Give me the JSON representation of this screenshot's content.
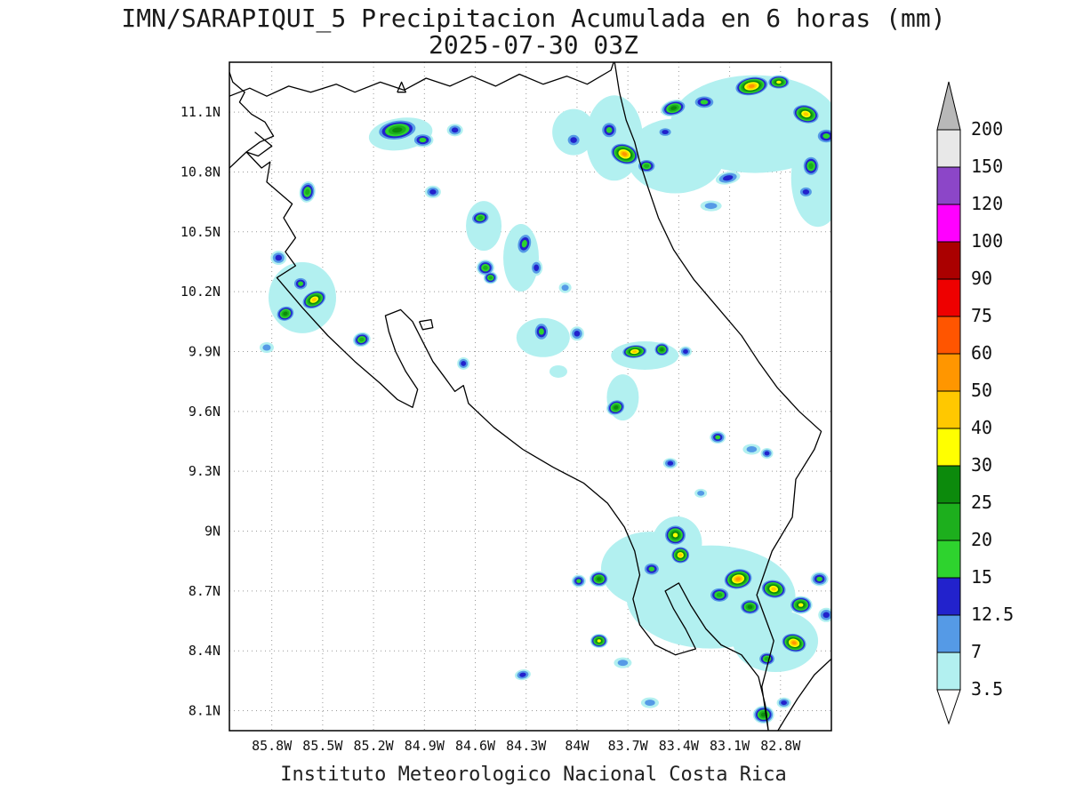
{
  "header": {
    "title_line1": "IMN/SARAPIQUI_5 Precipitacion Acumulada en 6 horas (mm)",
    "title_line2": "2025-07-30 03Z"
  },
  "footer": {
    "credit": "Instituto Meteorologico Nacional Costa Rica"
  },
  "chart_data": {
    "type": "heatmap",
    "title": "IMN/SARAPIQUI_5 Precipitacion Acumulada en 6 horas (mm)",
    "valid_time": "2025-07-30 03Z",
    "units": "mm",
    "region": "Costa Rica",
    "bounds": {
      "lon_min": -86.05,
      "lon_max": -82.5,
      "lat_min": 8.0,
      "lat_max": 11.35
    },
    "grid": true,
    "lat_ticks": [
      {
        "value": 11.1,
        "label": "11.1N"
      },
      {
        "value": 10.8,
        "label": "10.8N"
      },
      {
        "value": 10.5,
        "label": "10.5N"
      },
      {
        "value": 10.2,
        "label": "10.2N"
      },
      {
        "value": 9.9,
        "label": "9.9N"
      },
      {
        "value": 9.6,
        "label": "9.6N"
      },
      {
        "value": 9.3,
        "label": "9.3N"
      },
      {
        "value": 9.0,
        "label": "9N"
      },
      {
        "value": 8.7,
        "label": "8.7N"
      },
      {
        "value": 8.4,
        "label": "8.4N"
      },
      {
        "value": 8.1,
        "label": "8.1N"
      }
    ],
    "lon_ticks": [
      {
        "value": -85.8,
        "label": "85.8W"
      },
      {
        "value": -85.5,
        "label": "85.5W"
      },
      {
        "value": -85.2,
        "label": "85.2W"
      },
      {
        "value": -84.9,
        "label": "84.9W"
      },
      {
        "value": -84.6,
        "label": "84.6W"
      },
      {
        "value": -84.3,
        "label": "84.3W"
      },
      {
        "value": -84.0,
        "label": "84W"
      },
      {
        "value": -83.7,
        "label": "83.7W"
      },
      {
        "value": -83.4,
        "label": "83.4W"
      },
      {
        "value": -83.1,
        "label": "83.1W"
      },
      {
        "value": -82.8,
        "label": "82.8W"
      }
    ],
    "colorbar": {
      "boundary_values": [
        3.5,
        7,
        12.5,
        15,
        20,
        25,
        30,
        40,
        50,
        60,
        75,
        90,
        100,
        120,
        150,
        200
      ],
      "boundary_labels": [
        "3.5",
        "7",
        "12.5",
        "15",
        "20",
        "25",
        "30",
        "40",
        "50",
        "60",
        "75",
        "90",
        "100",
        "120",
        "150",
        "200"
      ],
      "segment_colors": [
        "#b2f0f0",
        "#559ae6",
        "#2222cc",
        "#2ed32e",
        "#1daf1d",
        "#0c8a0c",
        "#ffff00",
        "#ffc800",
        "#ff9600",
        "#ff5500",
        "#ee0000",
        "#aa0000",
        "#ff00ff",
        "#8c46c8",
        "#e8e8e8"
      ],
      "above_color": "#b8b8b8",
      "below_color": "#ffffff"
    },
    "cell_levels": [
      3.5,
      7,
      12.5,
      15,
      20,
      25,
      30,
      40,
      50
    ],
    "cell_format": [
      "lon",
      "lat",
      "peak_mm",
      "rx_px",
      "ry_px",
      "rot_deg"
    ],
    "cells": [
      [
        -82.95,
        11.04,
        3.5,
        95,
        55,
        0
      ],
      [
        -83.42,
        10.88,
        3.5,
        55,
        42,
        0
      ],
      [
        -83.78,
        10.97,
        3.5,
        32,
        48,
        0
      ],
      [
        -82.58,
        10.77,
        3.5,
        30,
        55,
        0
      ],
      [
        -84.02,
        11.0,
        3.5,
        24,
        26,
        0
      ],
      [
        -84.33,
        10.37,
        3.5,
        20,
        38,
        0
      ],
      [
        -83.21,
        8.67,
        3.5,
        95,
        58,
        0
      ],
      [
        -83.57,
        8.81,
        3.5,
        55,
        42,
        0
      ],
      [
        -83.41,
        8.94,
        3.5,
        28,
        30,
        0
      ],
      [
        -83.6,
        9.88,
        3.5,
        38,
        16,
        0
      ],
      [
        -83.73,
        9.67,
        3.5,
        18,
        26,
        0
      ],
      [
        -85.62,
        10.17,
        3.5,
        38,
        40,
        0
      ],
      [
        -85.04,
        10.99,
        3.5,
        36,
        18,
        -8
      ],
      [
        -82.83,
        8.45,
        3.5,
        48,
        35,
        0
      ],
      [
        -84.55,
        10.53,
        3.5,
        20,
        28,
        0
      ],
      [
        -84.2,
        9.97,
        3.5,
        30,
        22,
        0
      ],
      [
        -84.11,
        9.8,
        3.5,
        10,
        7,
        0
      ],
      [
        -85.06,
        11.01,
        25,
        24,
        12,
        -8
      ],
      [
        -84.91,
        10.96,
        15,
        12,
        8,
        0
      ],
      [
        -84.72,
        11.01,
        12.5,
        9,
        7,
        0
      ],
      [
        -84.02,
        10.96,
        12.5,
        9,
        8,
        0
      ],
      [
        -83.72,
        10.89,
        50,
        17,
        12,
        20
      ],
      [
        -83.81,
        11.01,
        15,
        10,
        10,
        0
      ],
      [
        -83.59,
        10.83,
        20,
        11,
        8,
        0
      ],
      [
        -83.43,
        11.12,
        25,
        15,
        9,
        -15
      ],
      [
        -83.25,
        11.15,
        15,
        13,
        8,
        0
      ],
      [
        -82.97,
        11.23,
        50,
        20,
        11,
        -10
      ],
      [
        -82.81,
        11.25,
        30,
        13,
        8,
        0
      ],
      [
        -82.65,
        11.09,
        40,
        16,
        11,
        15
      ],
      [
        -82.53,
        10.98,
        15,
        12,
        9,
        0
      ],
      [
        -82.62,
        10.83,
        20,
        10,
        12,
        0
      ],
      [
        -82.65,
        10.7,
        12.5,
        9,
        7,
        0
      ],
      [
        -83.11,
        10.77,
        12.5,
        14,
        7,
        -12
      ],
      [
        -83.21,
        10.63,
        7,
        12,
        6,
        0
      ],
      [
        -83.48,
        11.0,
        12.5,
        9,
        6,
        0
      ],
      [
        -85.59,
        10.7,
        20,
        9,
        12,
        10
      ],
      [
        -84.85,
        10.7,
        12.5,
        9,
        7,
        0
      ],
      [
        -84.57,
        10.57,
        20,
        11,
        8,
        -10
      ],
      [
        -84.31,
        10.44,
        15,
        9,
        13,
        15
      ],
      [
        -84.54,
        10.32,
        20,
        10,
        9,
        0
      ],
      [
        -84.51,
        10.27,
        20,
        8,
        7,
        0
      ],
      [
        -84.24,
        10.32,
        12.5,
        7,
        9,
        0
      ],
      [
        -84.07,
        10.22,
        7,
        7,
        6,
        0
      ],
      [
        -85.76,
        10.37,
        12.5,
        9,
        8,
        0
      ],
      [
        -85.72,
        10.09,
        25,
        11,
        9,
        -20
      ],
      [
        -85.55,
        10.16,
        40,
        15,
        10,
        -25
      ],
      [
        -85.63,
        10.24,
        15,
        9,
        8,
        0
      ],
      [
        -85.27,
        9.96,
        20,
        10,
        8,
        -15
      ],
      [
        -85.83,
        9.92,
        7,
        8,
        6,
        0
      ],
      [
        -84.67,
        9.84,
        12.5,
        7,
        7,
        0
      ],
      [
        -84.21,
        10.0,
        15,
        9,
        11,
        0
      ],
      [
        -84.0,
        9.99,
        12.5,
        8,
        8,
        0
      ],
      [
        -83.66,
        9.9,
        40,
        15,
        8,
        -5
      ],
      [
        -83.5,
        9.91,
        25,
        9,
        8,
        0
      ],
      [
        -83.36,
        9.9,
        12.5,
        7,
        6,
        0
      ],
      [
        -83.77,
        9.62,
        25,
        11,
        9,
        -20
      ],
      [
        -83.17,
        9.47,
        15,
        9,
        7,
        0
      ],
      [
        -82.97,
        9.41,
        7,
        10,
        6,
        0
      ],
      [
        -82.88,
        9.39,
        12.5,
        7,
        6,
        0
      ],
      [
        -83.45,
        9.34,
        12.5,
        8,
        6,
        0
      ],
      [
        -83.27,
        9.19,
        7,
        7,
        5,
        0
      ],
      [
        -83.42,
        8.98,
        30,
        13,
        12,
        0
      ],
      [
        -83.39,
        8.88,
        40,
        11,
        10,
        0
      ],
      [
        -83.56,
        8.81,
        15,
        10,
        8,
        0
      ],
      [
        -83.87,
        8.76,
        25,
        11,
        9,
        0
      ],
      [
        -83.99,
        8.75,
        15,
        8,
        7,
        0
      ],
      [
        -83.05,
        8.76,
        50,
        17,
        12,
        -10
      ],
      [
        -82.84,
        8.71,
        40,
        15,
        11,
        10
      ],
      [
        -82.68,
        8.63,
        30,
        13,
        10,
        0
      ],
      [
        -82.98,
        8.62,
        25,
        12,
        9,
        0
      ],
      [
        -83.16,
        8.68,
        20,
        12,
        9,
        0
      ],
      [
        -82.57,
        8.76,
        15,
        10,
        8,
        0
      ],
      [
        -82.53,
        8.58,
        12.5,
        9,
        8,
        0
      ],
      [
        -82.72,
        8.44,
        50,
        15,
        11,
        15
      ],
      [
        -82.88,
        8.36,
        20,
        10,
        8,
        0
      ],
      [
        -83.87,
        8.45,
        30,
        10,
        8,
        0
      ],
      [
        -83.73,
        8.34,
        7,
        10,
        6,
        0
      ],
      [
        -84.32,
        8.28,
        12.5,
        9,
        6,
        -10
      ],
      [
        -83.57,
        8.14,
        7,
        10,
        6,
        0
      ],
      [
        -82.9,
        8.08,
        25,
        12,
        10,
        0
      ],
      [
        -82.78,
        8.14,
        12.5,
        8,
        6,
        0
      ]
    ],
    "coastlines": [
      {
        "name": "costa-rica-outline",
        "points": [
          [
            -85.9,
            11.0
          ],
          [
            -85.8,
            10.93
          ],
          [
            -85.88,
            10.88
          ],
          [
            -85.95,
            10.9
          ],
          [
            -85.86,
            10.82
          ],
          [
            -85.81,
            10.85
          ],
          [
            -85.83,
            10.75
          ],
          [
            -85.68,
            10.64
          ],
          [
            -85.73,
            10.57
          ],
          [
            -85.66,
            10.47
          ],
          [
            -85.72,
            10.4
          ],
          [
            -85.66,
            10.33
          ],
          [
            -85.77,
            10.27
          ],
          [
            -85.62,
            10.12
          ],
          [
            -85.47,
            9.98
          ],
          [
            -85.31,
            9.85
          ],
          [
            -85.16,
            9.74
          ],
          [
            -85.06,
            9.66
          ],
          [
            -84.97,
            9.62
          ],
          [
            -84.94,
            9.71
          ],
          [
            -85.01,
            9.8
          ],
          [
            -85.07,
            9.9
          ],
          [
            -85.11,
            10.0
          ],
          [
            -85.13,
            10.08
          ],
          [
            -85.04,
            10.11
          ],
          [
            -84.97,
            10.05
          ],
          [
            -84.91,
            9.95
          ],
          [
            -84.85,
            9.85
          ],
          [
            -84.78,
            9.77
          ],
          [
            -84.72,
            9.7
          ],
          [
            -84.67,
            9.73
          ],
          [
            -84.64,
            9.64
          ],
          [
            -84.49,
            9.52
          ],
          [
            -84.32,
            9.41
          ],
          [
            -84.14,
            9.32
          ],
          [
            -83.96,
            9.24
          ],
          [
            -83.82,
            9.14
          ],
          [
            -83.72,
            9.02
          ],
          [
            -83.66,
            8.9
          ],
          [
            -83.63,
            8.78
          ],
          [
            -83.67,
            8.66
          ],
          [
            -83.63,
            8.53
          ],
          [
            -83.54,
            8.43
          ],
          [
            -83.42,
            8.38
          ],
          [
            -83.3,
            8.41
          ],
          [
            -83.36,
            8.51
          ],
          [
            -83.43,
            8.61
          ],
          [
            -83.48,
            8.7
          ],
          [
            -83.4,
            8.74
          ],
          [
            -83.33,
            8.63
          ],
          [
            -83.24,
            8.51
          ],
          [
            -83.15,
            8.43
          ],
          [
            -83.03,
            8.38
          ],
          [
            -82.93,
            8.27
          ],
          [
            -82.89,
            8.13
          ],
          [
            -82.87,
            7.99
          ],
          [
            -82.91,
            8.22
          ],
          [
            -82.84,
            8.45
          ],
          [
            -82.94,
            8.68
          ],
          [
            -82.85,
            8.9
          ],
          [
            -82.73,
            9.07
          ],
          [
            -82.71,
            9.26
          ],
          [
            -82.6,
            9.41
          ],
          [
            -82.56,
            9.5
          ],
          [
            -82.69,
            9.6
          ],
          [
            -82.82,
            9.72
          ],
          [
            -82.93,
            9.85
          ],
          [
            -83.03,
            9.98
          ],
          [
            -83.17,
            10.12
          ],
          [
            -83.31,
            10.26
          ],
          [
            -83.43,
            10.41
          ],
          [
            -83.52,
            10.57
          ],
          [
            -83.58,
            10.72
          ],
          [
            -83.63,
            10.85
          ],
          [
            -83.66,
            10.95
          ],
          [
            -83.71,
            11.06
          ],
          [
            -83.75,
            11.2
          ],
          [
            -83.78,
            11.36
          ]
        ]
      },
      {
        "name": "panama-pacific-coast",
        "points": [
          [
            -82.5,
            8.36
          ],
          [
            -82.6,
            8.28
          ],
          [
            -82.7,
            8.16
          ],
          [
            -82.78,
            8.05
          ],
          [
            -82.83,
            7.98
          ]
        ]
      },
      {
        "name": "san-juan-river-border",
        "points": [
          [
            -86.05,
            11.18
          ],
          [
            -85.93,
            11.22
          ],
          [
            -85.83,
            11.18
          ],
          [
            -85.7,
            11.23
          ],
          [
            -85.57,
            11.2
          ],
          [
            -85.42,
            11.24
          ],
          [
            -85.31,
            11.2
          ],
          [
            -85.16,
            11.25
          ],
          [
            -85.02,
            11.21
          ],
          [
            -84.89,
            11.27
          ],
          [
            -84.75,
            11.23
          ],
          [
            -84.62,
            11.28
          ],
          [
            -84.48,
            11.23
          ],
          [
            -84.34,
            11.29
          ],
          [
            -84.2,
            11.24
          ],
          [
            -84.06,
            11.28
          ],
          [
            -83.94,
            11.24
          ],
          [
            -83.8,
            11.31
          ],
          [
            -83.78,
            11.36
          ]
        ]
      },
      {
        "name": "lake-nicaragua-shore",
        "points": [
          [
            -86.05,
            10.82
          ],
          [
            -85.95,
            10.9
          ],
          [
            -85.87,
            10.95
          ],
          [
            -85.79,
            10.98
          ],
          [
            -85.84,
            11.05
          ],
          [
            -85.92,
            11.09
          ],
          [
            -85.99,
            11.15
          ],
          [
            -85.96,
            11.2
          ],
          [
            -86.03,
            11.25
          ],
          [
            -86.05,
            11.3
          ]
        ]
      },
      {
        "name": "island-marker",
        "points": [
          [
            -85.06,
            11.2
          ],
          [
            -85.01,
            11.2
          ],
          [
            -85.035,
            11.25
          ],
          [
            -85.06,
            11.2
          ]
        ]
      },
      {
        "name": "isla-chira",
        "points": [
          [
            -84.93,
            10.05
          ],
          [
            -84.86,
            10.06
          ],
          [
            -84.85,
            10.02
          ],
          [
            -84.91,
            10.01
          ],
          [
            -84.93,
            10.05
          ]
        ]
      }
    ]
  }
}
